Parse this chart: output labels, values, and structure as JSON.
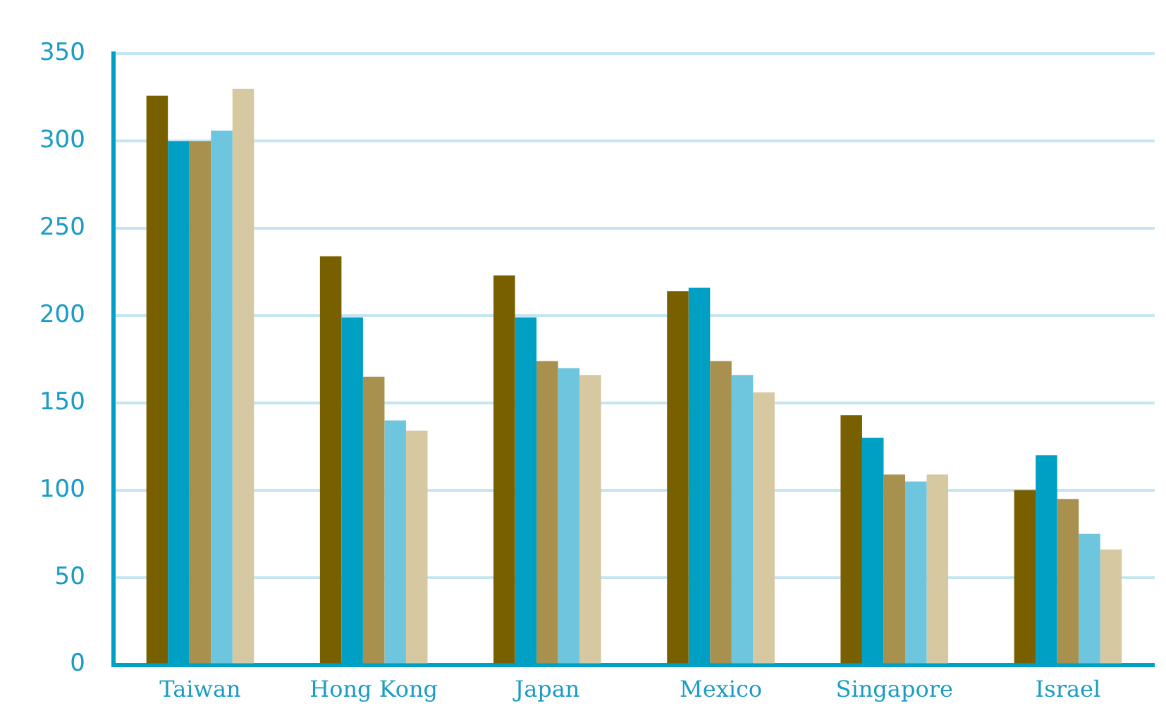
{
  "chart_data": {
    "type": "bar",
    "categories": [
      "Taiwan",
      "Hong Kong",
      "Japan",
      "Mexico",
      "Singapore",
      "Israel"
    ],
    "series": [
      {
        "color": "#786000",
        "values": [
          326,
          234,
          223,
          214,
          143,
          100
        ]
      },
      {
        "color": "#00a0c4",
        "values": [
          300,
          199,
          199,
          216,
          130,
          120
        ]
      },
      {
        "color": "#a8904e",
        "values": [
          300,
          165,
          174,
          174,
          109,
          95
        ]
      },
      {
        "color": "#6ec6de",
        "values": [
          306,
          140,
          170,
          166,
          105,
          75
        ]
      },
      {
        "color": "#d6c8a0",
        "values": [
          330,
          134,
          166,
          156,
          109,
          66
        ]
      }
    ],
    "ylim": [
      0,
      350
    ],
    "yticks": [
      0,
      50,
      100,
      150,
      200,
      250,
      300,
      350
    ],
    "grid": "y",
    "legend": false
  }
}
